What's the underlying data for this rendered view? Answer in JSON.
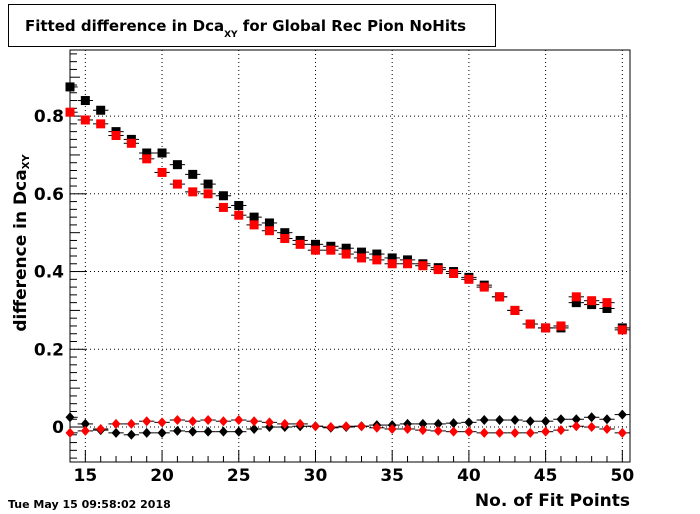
{
  "title": {
    "main": "Fitted difference in Dca",
    "subscript": "XY",
    "suffix": " for Global Rec Pion NoHits"
  },
  "ylabel": {
    "main": "difference in Dca",
    "subscript": "XY"
  },
  "xlabel": "No. of Fit Points",
  "timestamp": "Tue May 15 09:58:02 2018",
  "chart_data": {
    "type": "scatter",
    "xlim": [
      14,
      50.5
    ],
    "ylim": [
      -0.09,
      0.97
    ],
    "xticks": [
      15,
      20,
      25,
      30,
      35,
      40,
      45,
      50
    ],
    "yticks": [
      0,
      0.2,
      0.4,
      0.6,
      0.8
    ],
    "ytick_labels": [
      "0",
      "0.2",
      "0.4",
      "0.6",
      "0.8"
    ],
    "grid": true,
    "series": [
      {
        "marker": "square",
        "color": "#000000",
        "x": [
          14,
          15,
          16,
          17,
          18,
          19,
          20,
          21,
          22,
          23,
          24,
          25,
          26,
          27,
          28,
          29,
          30,
          31,
          32,
          33,
          34,
          35,
          36,
          37,
          38,
          39,
          40,
          41,
          42,
          43,
          44,
          45,
          46,
          47,
          48,
          49,
          50
        ],
        "y": [
          0.875,
          0.84,
          0.815,
          0.76,
          0.74,
          0.705,
          0.705,
          0.675,
          0.65,
          0.625,
          0.595,
          0.57,
          0.54,
          0.525,
          0.5,
          0.48,
          0.47,
          0.465,
          0.46,
          0.45,
          0.445,
          0.435,
          0.43,
          0.42,
          0.41,
          0.4,
          0.385,
          0.365,
          0.335,
          0.3,
          0.265,
          0.255,
          0.255,
          0.32,
          0.315,
          0.305,
          0.255
        ]
      },
      {
        "marker": "square",
        "color": "#ff0000",
        "x": [
          14,
          15,
          16,
          17,
          18,
          19,
          20,
          21,
          22,
          23,
          24,
          25,
          26,
          27,
          28,
          29,
          30,
          31,
          32,
          33,
          34,
          35,
          36,
          37,
          38,
          39,
          40,
          41,
          42,
          43,
          44,
          45,
          46,
          47,
          48,
          49,
          50
        ],
        "y": [
          0.81,
          0.79,
          0.78,
          0.75,
          0.73,
          0.69,
          0.655,
          0.625,
          0.605,
          0.6,
          0.565,
          0.545,
          0.52,
          0.505,
          0.485,
          0.47,
          0.455,
          0.455,
          0.445,
          0.435,
          0.43,
          0.42,
          0.42,
          0.415,
          0.405,
          0.395,
          0.38,
          0.36,
          0.335,
          0.3,
          0.265,
          0.255,
          0.26,
          0.335,
          0.325,
          0.32,
          0.25
        ]
      },
      {
        "marker": "diamond",
        "color": "#000000",
        "x": [
          14,
          15,
          16,
          17,
          18,
          19,
          20,
          21,
          22,
          23,
          24,
          25,
          26,
          27,
          28,
          29,
          30,
          31,
          32,
          33,
          34,
          35,
          36,
          37,
          38,
          39,
          40,
          41,
          42,
          43,
          44,
          45,
          46,
          47,
          48,
          49,
          50
        ],
        "y": [
          0.025,
          0.008,
          -0.008,
          -0.015,
          -0.02,
          -0.015,
          -0.015,
          -0.01,
          -0.012,
          -0.012,
          -0.012,
          -0.012,
          -0.005,
          0.0,
          0.0,
          0.002,
          0.002,
          -0.002,
          0.0,
          0.002,
          0.005,
          0.005,
          0.008,
          0.008,
          0.008,
          0.01,
          0.012,
          0.018,
          0.018,
          0.018,
          0.015,
          0.015,
          0.02,
          0.02,
          0.025,
          0.02,
          0.032
        ]
      },
      {
        "marker": "diamond",
        "color": "#ff0000",
        "x": [
          14,
          15,
          16,
          17,
          18,
          19,
          20,
          21,
          22,
          23,
          24,
          25,
          26,
          27,
          28,
          29,
          30,
          31,
          32,
          33,
          34,
          35,
          36,
          37,
          38,
          39,
          40,
          41,
          42,
          43,
          44,
          45,
          46,
          47,
          48,
          49,
          50
        ],
        "y": [
          -0.015,
          -0.01,
          -0.005,
          0.008,
          0.008,
          0.015,
          0.012,
          0.018,
          0.015,
          0.018,
          0.015,
          0.018,
          0.015,
          0.012,
          0.008,
          0.008,
          0.002,
          0.0,
          0.002,
          0.002,
          -0.002,
          -0.005,
          -0.005,
          -0.008,
          -0.01,
          -0.012,
          -0.012,
          -0.015,
          -0.015,
          -0.015,
          -0.015,
          -0.012,
          -0.008,
          0.002,
          0.0,
          -0.005,
          -0.015
        ]
      }
    ]
  }
}
